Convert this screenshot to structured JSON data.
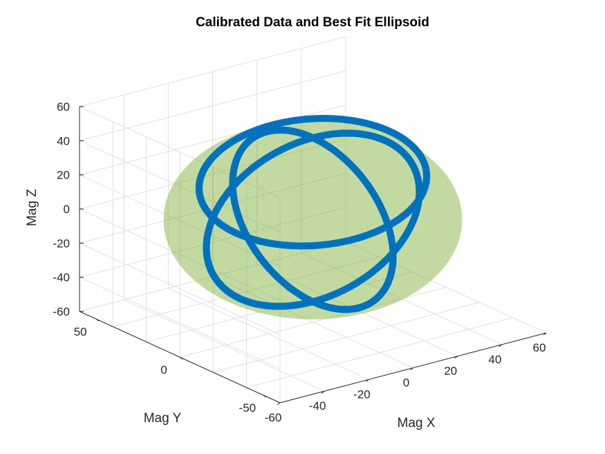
{
  "chart_data": {
    "type": "scatter",
    "title": "Calibrated Data and Best Fit Ellipsoid",
    "xlabel": "Mag X",
    "ylabel": "Mag Y",
    "zlabel": "Mag Z",
    "xlim": [
      -60,
      60
    ],
    "ylim": [
      -60,
      60
    ],
    "zlim": [
      -60,
      60
    ],
    "xticks": [
      "-60",
      "-40",
      "-20",
      "0",
      "20",
      "40",
      "60"
    ],
    "yticks": [
      "-50",
      "0",
      "50"
    ],
    "zticks": [
      "-60",
      "-40",
      "-20",
      "0",
      "20",
      "40",
      "60"
    ],
    "grid": true,
    "projection": "3d",
    "ellipsoid": {
      "center": [
        0,
        0,
        0
      ],
      "radius": 50,
      "color": "#77AC30",
      "opacity": 0.45
    },
    "series": [
      {
        "shape": "circle",
        "axis": "x",
        "radius": 48,
        "color": "#0072BD"
      },
      {
        "shape": "circle",
        "axis": "y",
        "radius": 48,
        "color": "#0072BD"
      },
      {
        "shape": "circle",
        "axis": "tilted",
        "radius": 48,
        "color": "#0072BD"
      }
    ]
  }
}
